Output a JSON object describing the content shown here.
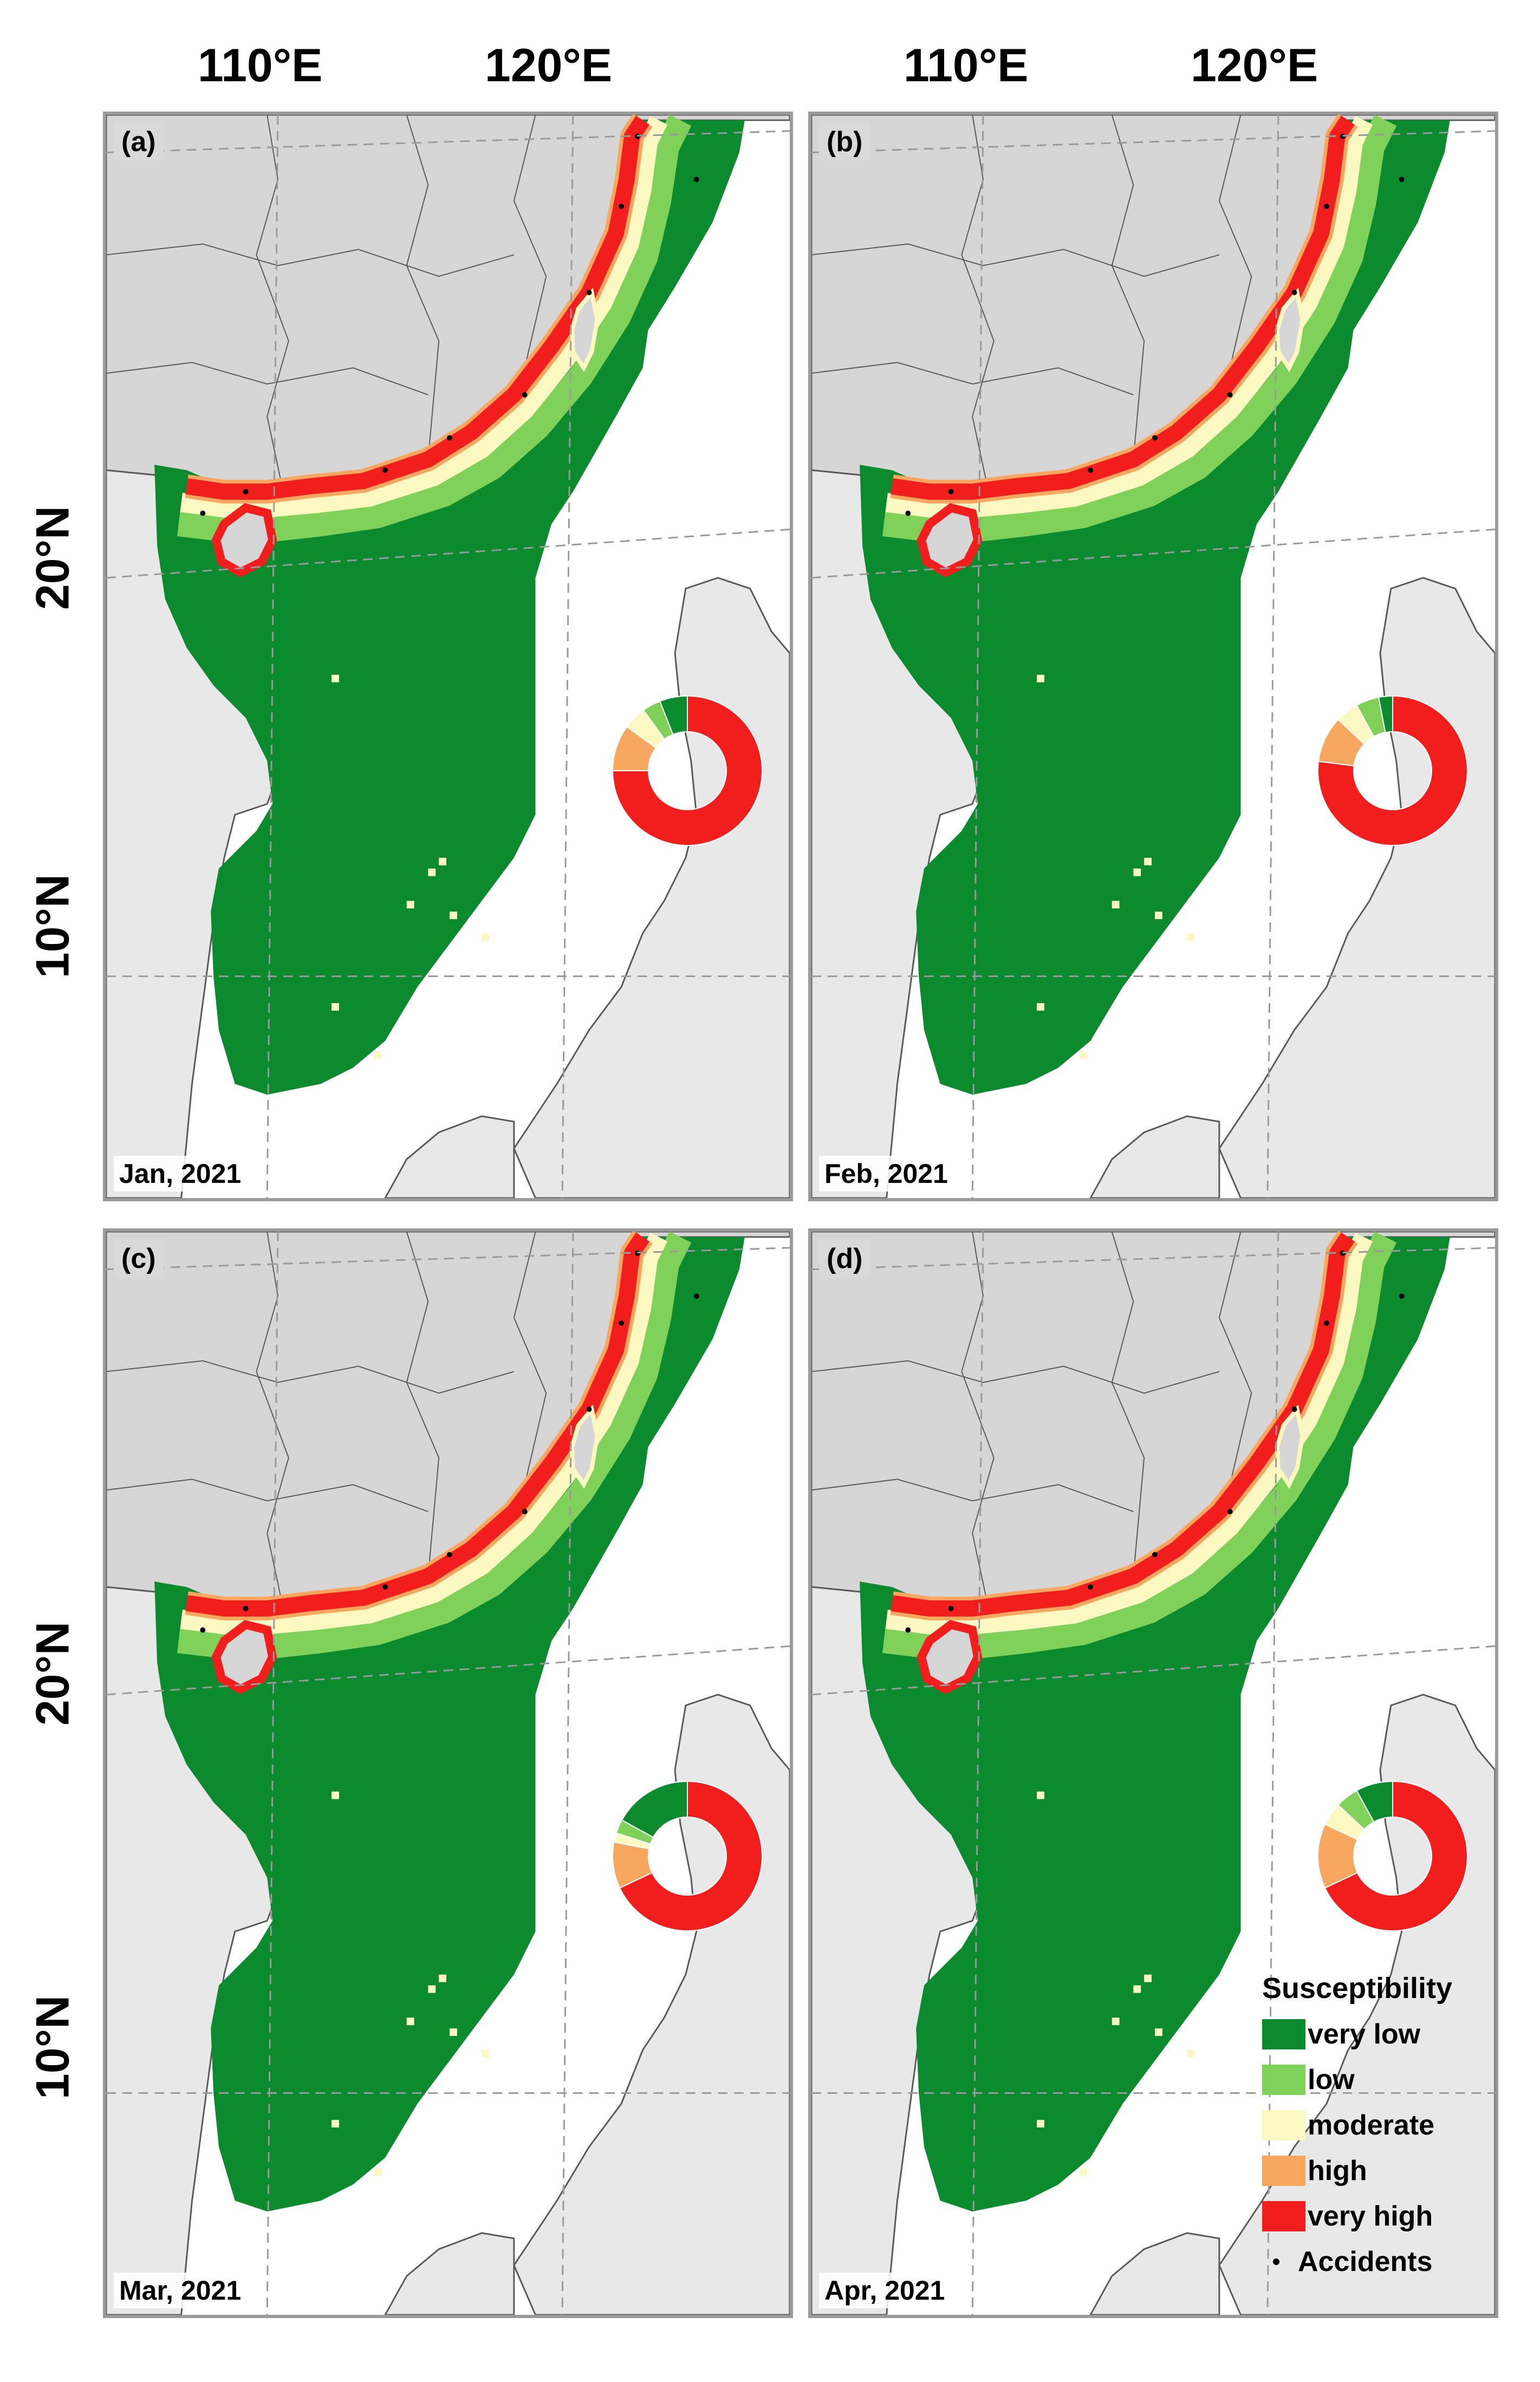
{
  "axes": {
    "lon_labels": [
      "110°E",
      "120°E"
    ],
    "lat_labels": [
      "20°N",
      "10°N"
    ]
  },
  "panels": [
    {
      "id": "a",
      "label": "(a)",
      "date": "Jan, 2021",
      "shares": {
        "very_low": 6,
        "low": 4,
        "moderate": 5,
        "high": 10,
        "very_high": 75
      }
    },
    {
      "id": "b",
      "label": "(b)",
      "date": "Feb, 2021",
      "shares": {
        "very_low": 3,
        "low": 5,
        "moderate": 5,
        "high": 10,
        "very_high": 77
      }
    },
    {
      "id": "c",
      "label": "(c)",
      "date": "Mar, 2021",
      "shares": {
        "very_low": 17,
        "low": 3,
        "moderate": 2,
        "high": 10,
        "very_high": 68
      }
    },
    {
      "id": "d",
      "label": "(d)",
      "date": "Apr, 2021",
      "shares": {
        "very_low": 8,
        "low": 5,
        "moderate": 5,
        "high": 14,
        "very_high": 68
      }
    }
  ],
  "legend": {
    "title": "Susceptibility",
    "classes": [
      {
        "key": "very_low",
        "label": "very low",
        "color": "#0b8a2e"
      },
      {
        "key": "low",
        "label": "low",
        "color": "#7fd15a"
      },
      {
        "key": "moderate",
        "label": "moderate",
        "color": "#fbf8c2"
      },
      {
        "key": "high",
        "label": "high",
        "color": "#f7a75f"
      },
      {
        "key": "very_high",
        "label": "very high",
        "color": "#f21d1d"
      }
    ],
    "accidents_label": "Accidents"
  },
  "colors": {
    "land": "#d6d6d6",
    "border": "#5a5a5a",
    "grid": "#9a9a9a",
    "sea": "#ffffff"
  }
}
